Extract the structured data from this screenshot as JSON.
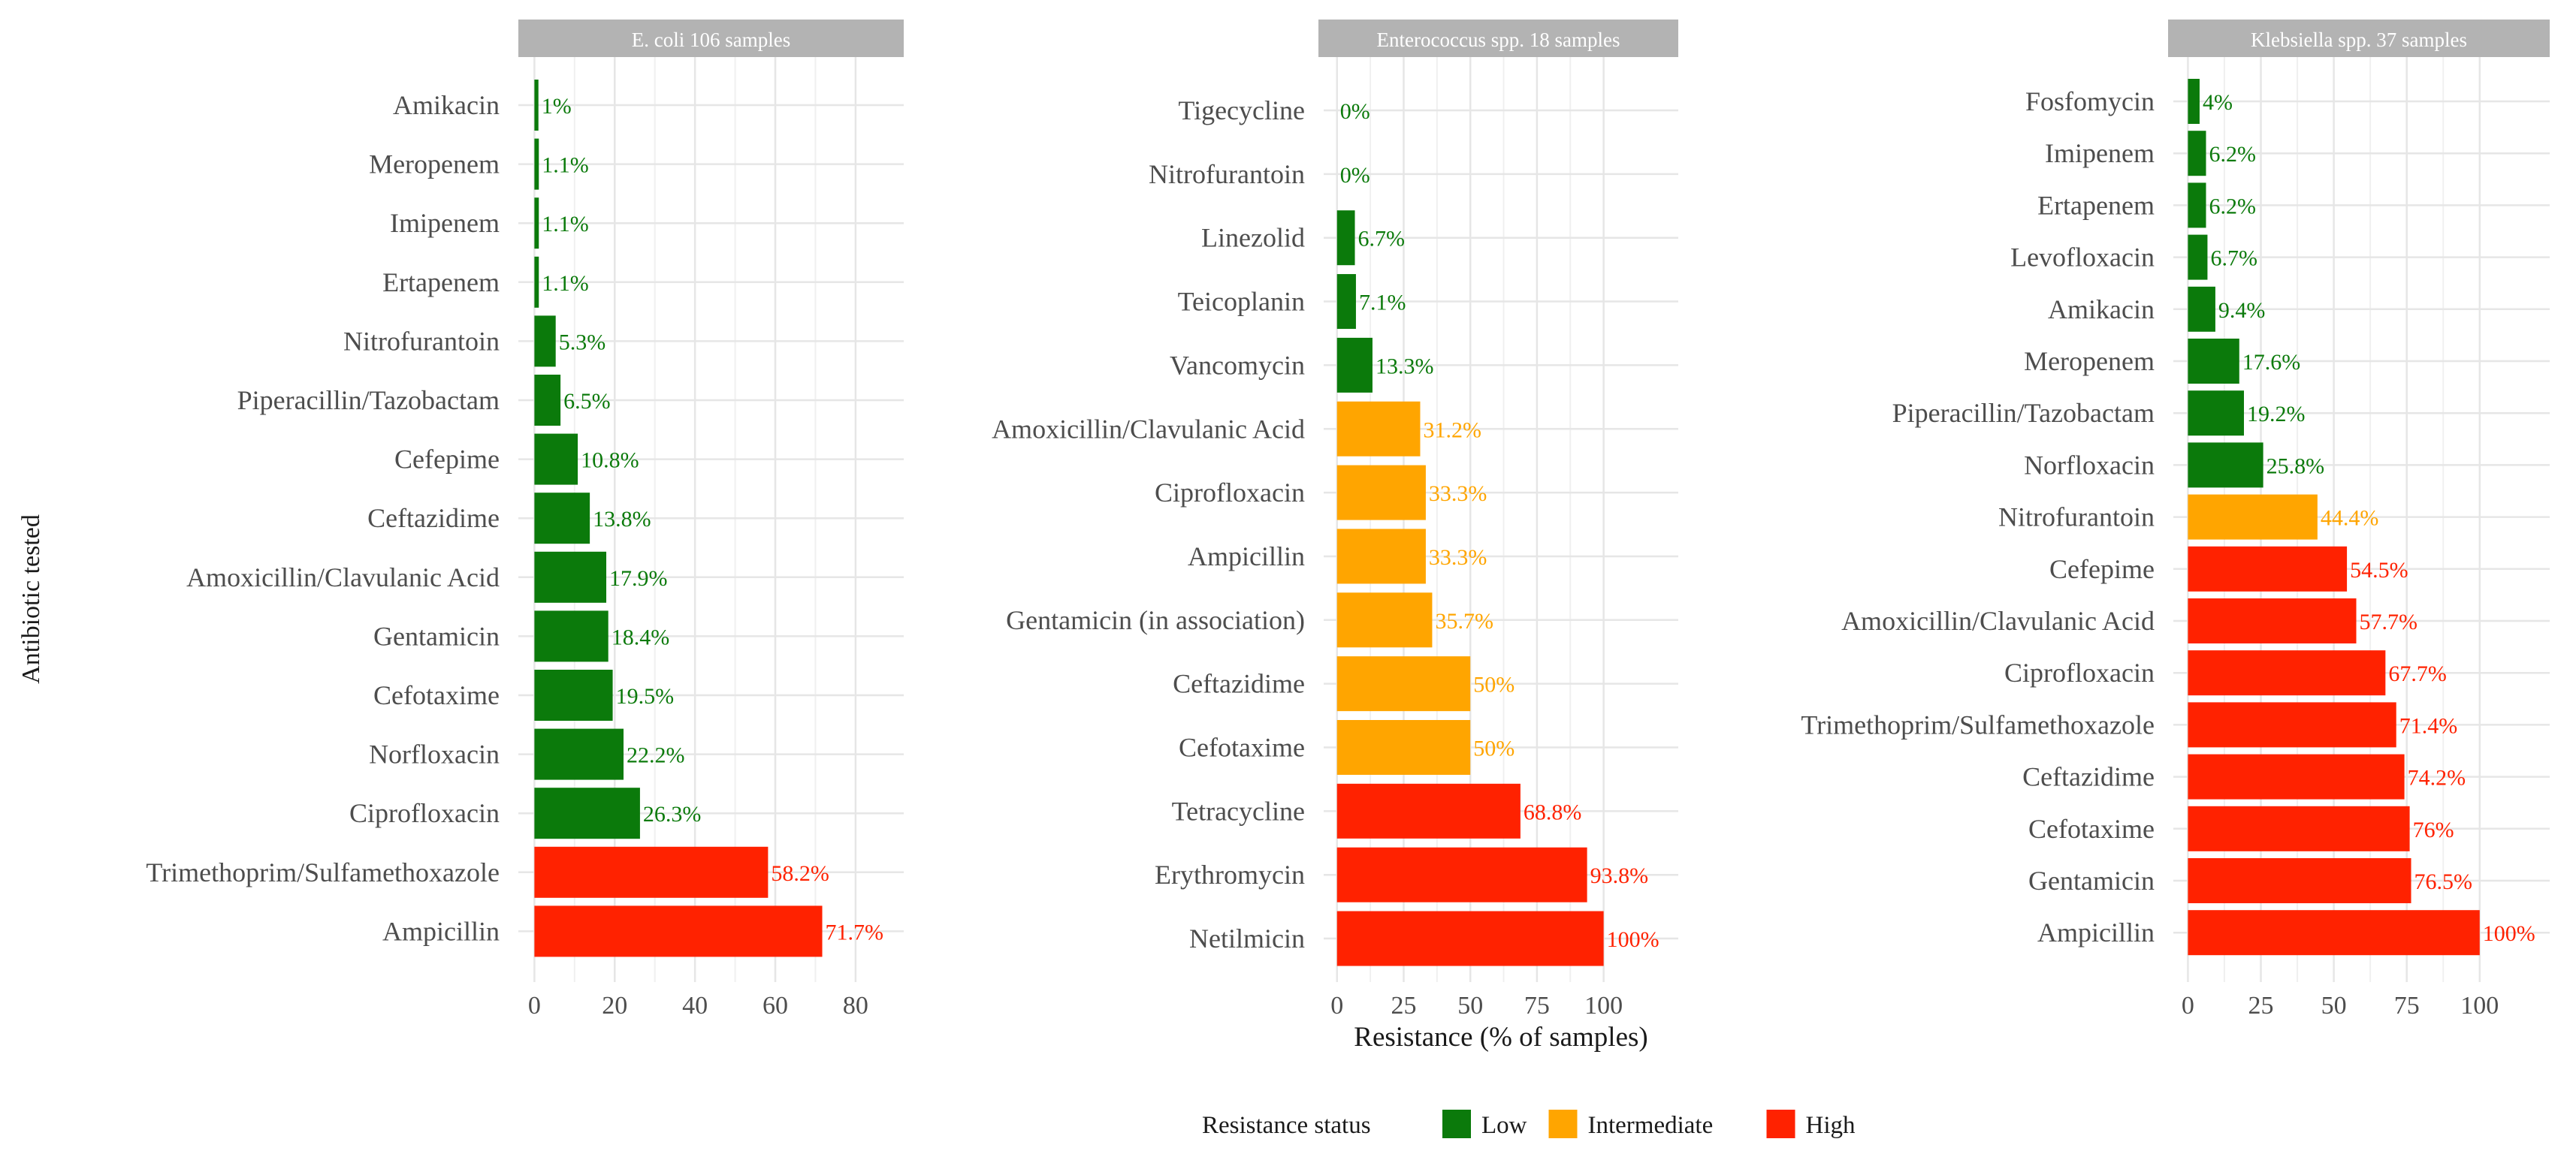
{
  "colors": {
    "low": "#0b7a0b",
    "intermediate": "#ffa500",
    "high": "#ff2200",
    "strip": "#b3b3b3",
    "grid": "#e6e6e6",
    "axis_text": "#4d4d4d",
    "title_text": "#1a1a1a"
  },
  "ylabel": "Antibiotic tested",
  "xlabel": "Resistance (% of samples)",
  "legend": {
    "title": "Resistance status",
    "items": [
      {
        "key": "low",
        "label": "Low"
      },
      {
        "key": "intermediate",
        "label": "Intermediate"
      },
      {
        "key": "high",
        "label": "High"
      }
    ]
  },
  "chart_data": [
    {
      "type": "bar",
      "orientation": "horizontal",
      "title": "E. coli 106 samples",
      "xlim": [
        -4,
        92
      ],
      "xticks": [
        0,
        20,
        40,
        60,
        80
      ],
      "categories": [
        "Amikacin",
        "Meropenem",
        "Imipenem",
        "Ertapenem",
        "Nitrofurantoin",
        "Piperacillin/Tazobactam",
        "Cefepime",
        "Ceftazidime",
        "Amoxicillin/Clavulanic Acid",
        "Gentamicin",
        "Cefotaxime",
        "Norfloxacin",
        "Ciprofloxacin",
        "Trimethoprim/Sulfamethoxazole",
        "Ampicillin"
      ],
      "values": [
        1,
        1.1,
        1.1,
        1.1,
        5.3,
        6.5,
        10.8,
        13.8,
        17.9,
        18.4,
        19.5,
        22.2,
        26.3,
        58.2,
        71.7
      ],
      "labels": [
        "1%",
        "1.1%",
        "1.1%",
        "1.1%",
        "5.3%",
        "6.5%",
        "10.8%",
        "13.8%",
        "17.9%",
        "18.4%",
        "19.5%",
        "22.2%",
        "26.3%",
        "58.2%",
        "71.7%"
      ],
      "status": [
        "low",
        "low",
        "low",
        "low",
        "low",
        "low",
        "low",
        "low",
        "low",
        "low",
        "low",
        "low",
        "low",
        "high",
        "high"
      ]
    },
    {
      "type": "bar",
      "orientation": "horizontal",
      "title": "Enterococcus spp. 18 samples",
      "xlim": [
        -5,
        128
      ],
      "xticks": [
        0,
        25,
        50,
        75,
        100
      ],
      "categories": [
        "Tigecycline",
        "Nitrofurantoin",
        "Linezolid",
        "Teicoplanin",
        "Vancomycin",
        "Amoxicillin/Clavulanic Acid",
        "Ciprofloxacin",
        "Ampicillin",
        "Gentamicin (in association)",
        "Ceftazidime",
        "Cefotaxime",
        "Tetracycline",
        "Erythromycin",
        "Netilmicin"
      ],
      "values": [
        0,
        0,
        6.7,
        7.1,
        13.3,
        31.2,
        33.3,
        33.3,
        35.7,
        50,
        50,
        68.8,
        93.8,
        100
      ],
      "labels": [
        "0%",
        "0%",
        "6.7%",
        "7.1%",
        "13.3%",
        "31.2%",
        "33.3%",
        "33.3%",
        "35.7%",
        "50%",
        "50%",
        "68.8%",
        "93.8%",
        "100%"
      ],
      "status": [
        "low",
        "low",
        "low",
        "low",
        "low",
        "intermediate",
        "intermediate",
        "intermediate",
        "intermediate",
        "intermediate",
        "intermediate",
        "high",
        "high",
        "high"
      ]
    },
    {
      "type": "bar",
      "orientation": "horizontal",
      "title": "Klebsiella spp. 37 samples",
      "xlim": [
        -5,
        124
      ],
      "xticks": [
        0,
        25,
        50,
        75,
        100
      ],
      "categories": [
        "Fosfomycin",
        "Imipenem",
        "Ertapenem",
        "Levofloxacin",
        "Amikacin",
        "Meropenem",
        "Piperacillin/Tazobactam",
        "Norfloxacin",
        "Nitrofurantoin",
        "Cefepime",
        "Amoxicillin/Clavulanic Acid",
        "Ciprofloxacin",
        "Trimethoprim/Sulfamethoxazole",
        "Ceftazidime",
        "Cefotaxime",
        "Gentamicin",
        "Ampicillin"
      ],
      "values": [
        4,
        6.2,
        6.2,
        6.7,
        9.4,
        17.6,
        19.2,
        25.8,
        44.4,
        54.5,
        57.7,
        67.7,
        71.4,
        74.2,
        76,
        76.5,
        100
      ],
      "labels": [
        "4%",
        "6.2%",
        "6.2%",
        "6.7%",
        "9.4%",
        "17.6%",
        "19.2%",
        "25.8%",
        "44.4%",
        "54.5%",
        "57.7%",
        "67.7%",
        "71.4%",
        "74.2%",
        "76%",
        "76.5%",
        "100%"
      ],
      "status": [
        "low",
        "low",
        "low",
        "low",
        "low",
        "low",
        "low",
        "low",
        "intermediate",
        "high",
        "high",
        "high",
        "high",
        "high",
        "high",
        "high",
        "high"
      ]
    }
  ]
}
